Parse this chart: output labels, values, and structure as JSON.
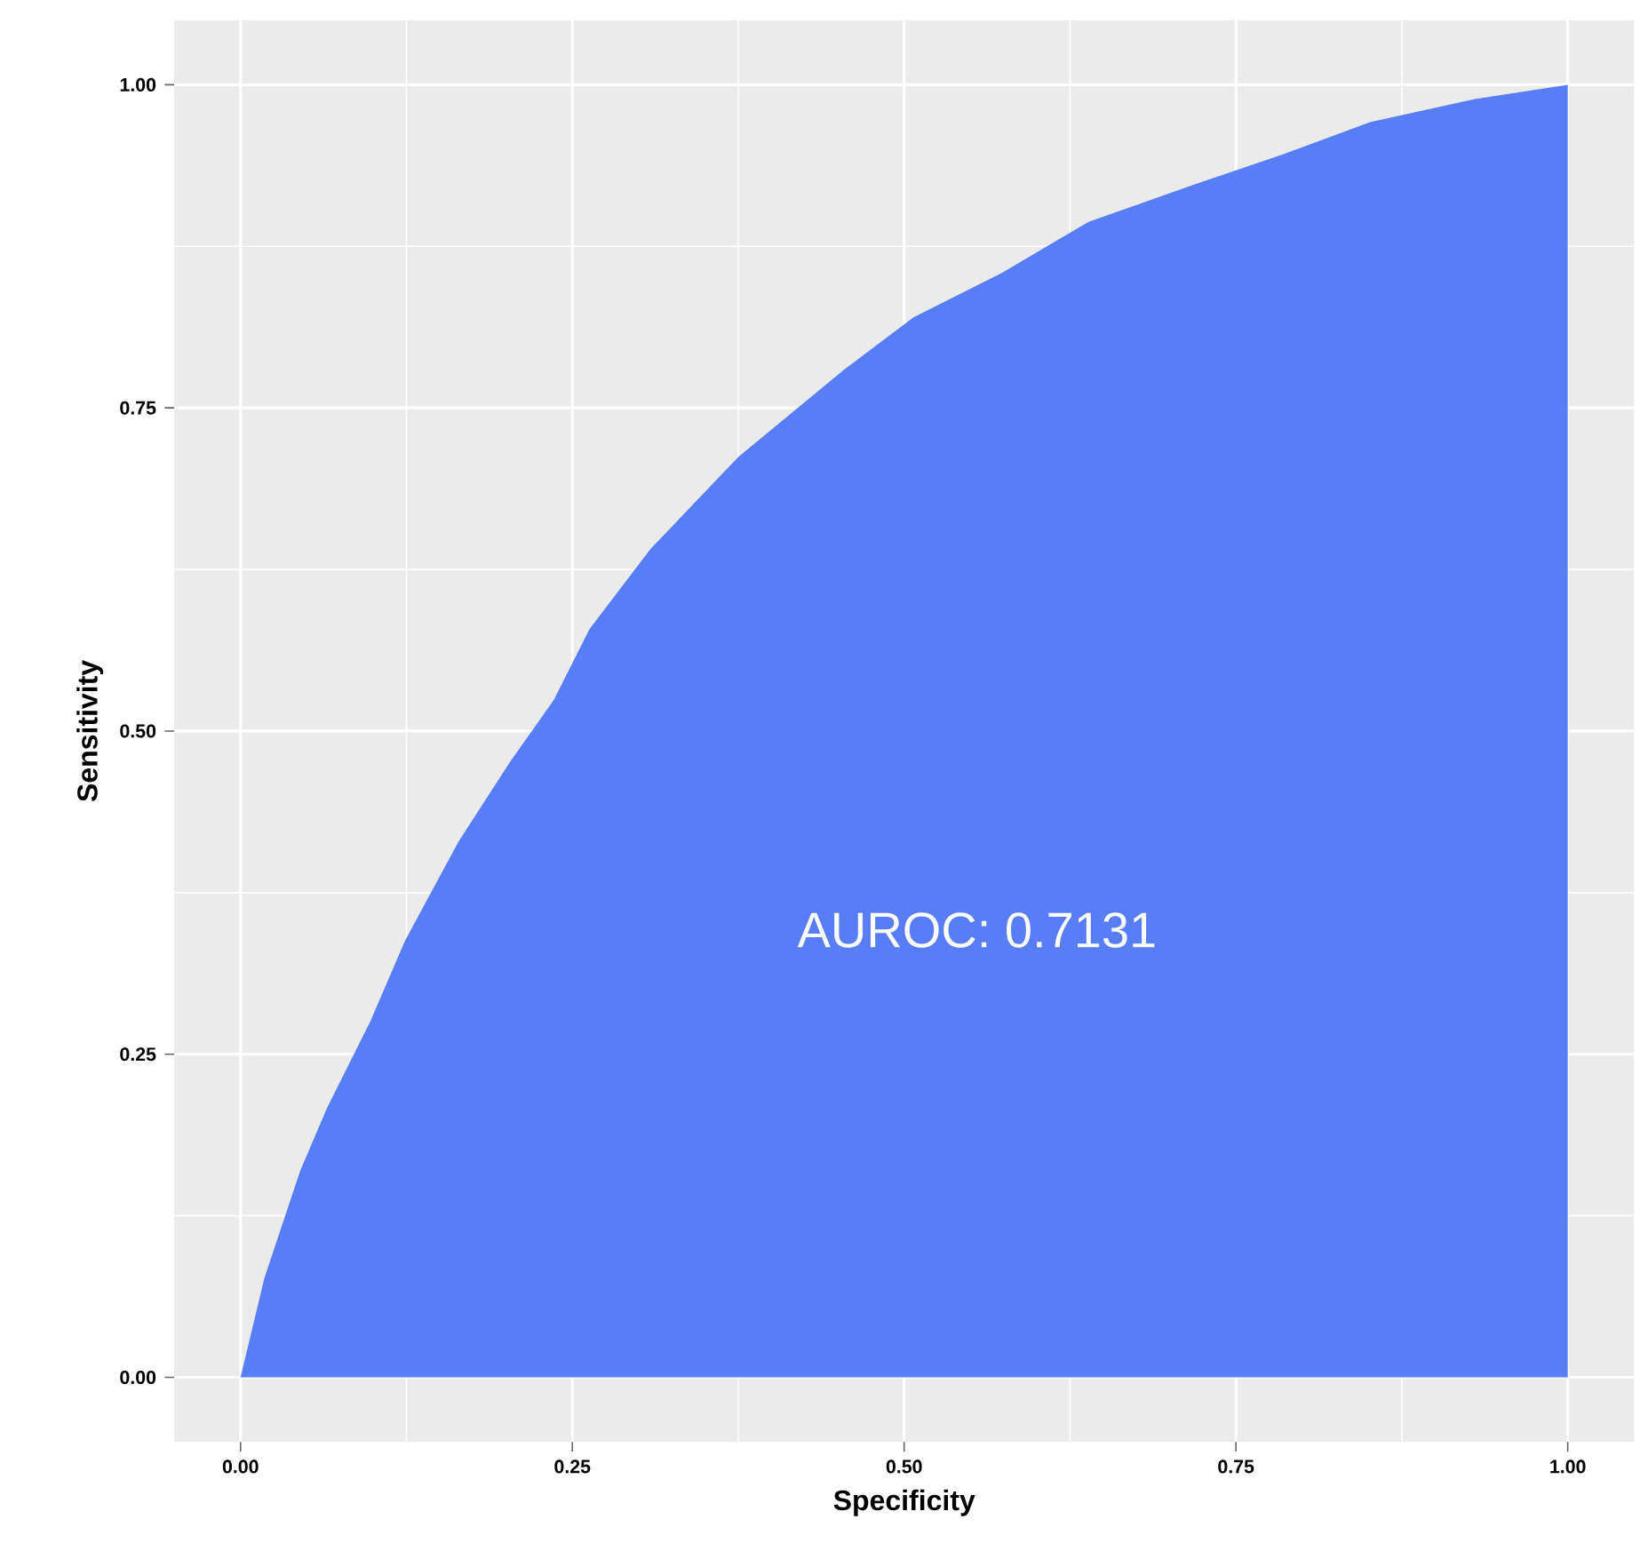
{
  "chart_data": {
    "type": "area",
    "xlabel": "Specificity",
    "ylabel": "Sensitivity",
    "x": [
      0,
      0.018,
      0.045,
      0.065,
      0.098,
      0.124,
      0.164,
      0.203,
      0.236,
      0.263,
      0.309,
      0.375,
      0.454,
      0.507,
      0.573,
      0.639,
      0.719,
      0.785,
      0.851,
      0.93,
      1
    ],
    "values": [
      0,
      0.077,
      0.16,
      0.208,
      0.276,
      0.338,
      0.414,
      0.476,
      0.524,
      0.579,
      0.641,
      0.712,
      0.779,
      0.82,
      0.854,
      0.894,
      0.923,
      0.946,
      0.971,
      0.989,
      1
    ],
    "color": "#587ef7",
    "xlim": [
      -0.05,
      1.05
    ],
    "ylim": [
      -0.05,
      1.05
    ],
    "xticks": [
      {
        "value": 0,
        "label": "0.00"
      },
      0.25,
      {
        "value": 0.5,
        "label": "0.50"
      },
      0.75,
      {
        "value": 1,
        "label": "1.00"
      }
    ],
    "yticks": [
      {
        "value": 0,
        "label": "0.00"
      },
      0.25,
      {
        "value": 0.5,
        "label": "0.50"
      },
      0.75,
      {
        "value": 1,
        "label": "1.00"
      }
    ],
    "grid": true,
    "annotations": [
      "AUROC: 0.7131"
    ]
  }
}
